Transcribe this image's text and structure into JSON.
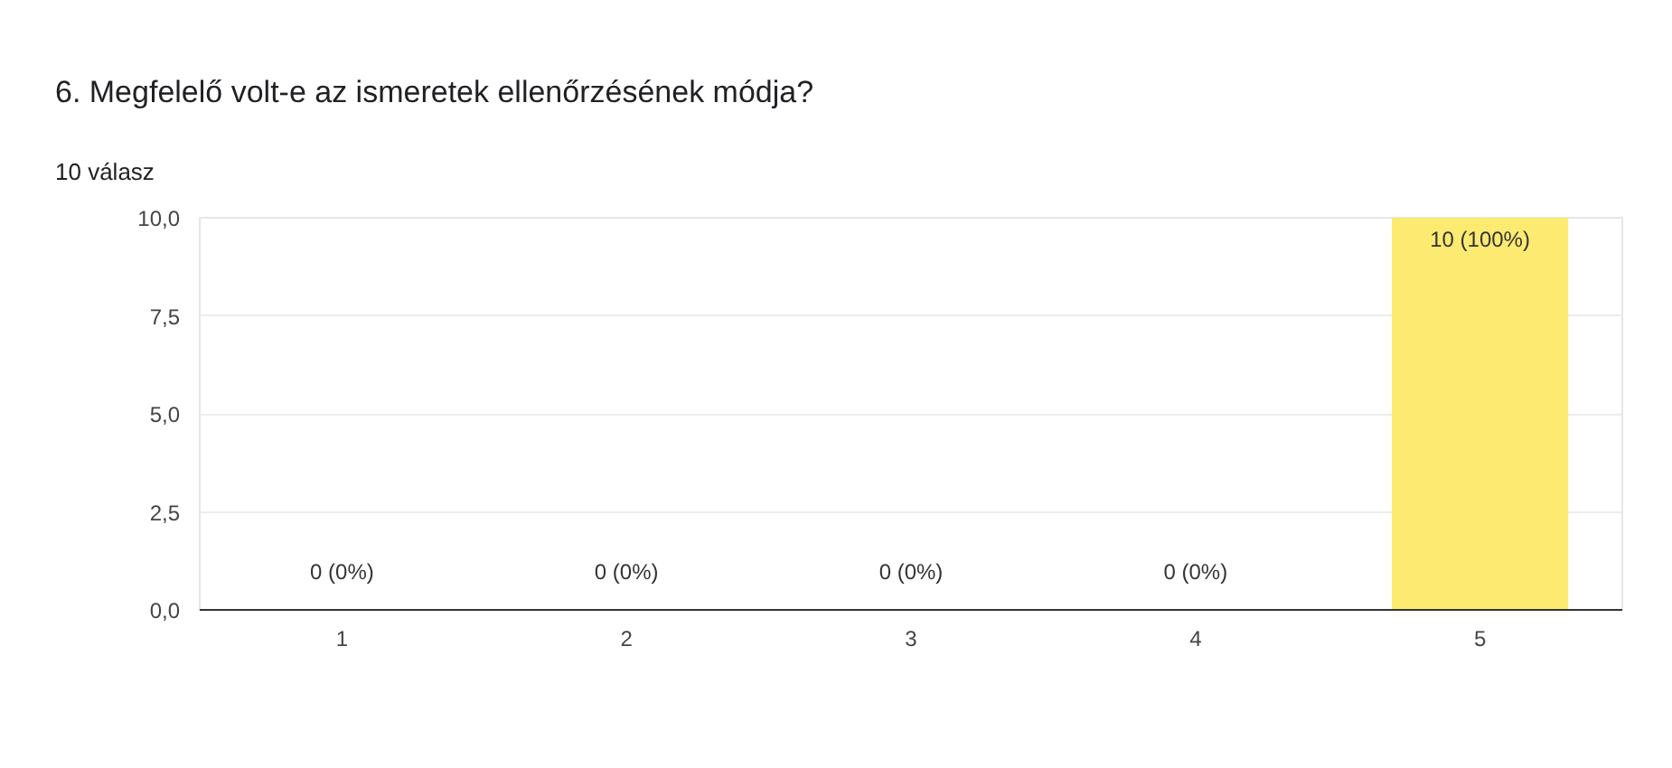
{
  "chart_data": {
    "type": "bar",
    "title": "6. Megfelelő volt-e az ismeretek ellenőrzésének módja?",
    "subtitle": "10 válasz",
    "categories": [
      "1",
      "2",
      "3",
      "4",
      "5"
    ],
    "values": [
      0,
      0,
      0,
      0,
      10
    ],
    "value_labels": [
      "0 (0%)",
      "0 (0%)",
      "0 (0%)",
      "0 (0%)",
      "10 (100%)"
    ],
    "color": "#fdeb71",
    "ylim": [
      0,
      10
    ],
    "yticks": [
      {
        "value": 0,
        "label": "0,0"
      },
      {
        "value": 2.5,
        "label": "2,5"
      },
      {
        "value": 5,
        "label": "5,0"
      },
      {
        "value": 7.5,
        "label": "7,5"
      },
      {
        "value": 10,
        "label": "10,0"
      }
    ],
    "grid": "y"
  }
}
